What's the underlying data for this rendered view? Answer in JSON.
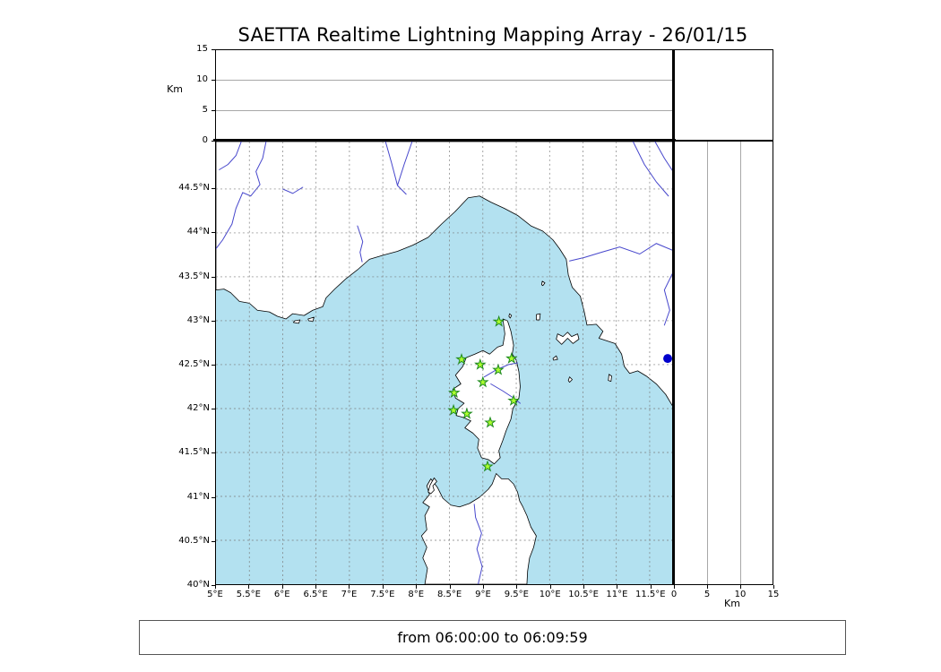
{
  "title": "SAETTA Realtime Lightning Mapping Array - 26/01/15",
  "footer": {
    "time_range": "from 06:00:00 to 06:09:59"
  },
  "axes": {
    "km_label": "Km",
    "km_ticks": [
      {
        "v": 0,
        "label": "0"
      },
      {
        "v": 5,
        "label": "5"
      },
      {
        "v": 10,
        "label": "10"
      },
      {
        "v": 15,
        "label": "15"
      }
    ],
    "lon_ticks": [
      {
        "v": 5,
        "label": "5°E"
      },
      {
        "v": 5.5,
        "label": "5.5°E"
      },
      {
        "v": 6,
        "label": "6°E"
      },
      {
        "v": 6.5,
        "label": "6.5°E"
      },
      {
        "v": 7,
        "label": "7°E"
      },
      {
        "v": 7.5,
        "label": "7.5°E"
      },
      {
        "v": 8,
        "label": "8°E"
      },
      {
        "v": 8.5,
        "label": "8.5°E"
      },
      {
        "v": 9,
        "label": "9°E"
      },
      {
        "v": 9.5,
        "label": "9.5°E"
      },
      {
        "v": 10,
        "label": "10°E"
      },
      {
        "v": 10.5,
        "label": "10.5°E"
      },
      {
        "v": 11,
        "label": "11°E"
      },
      {
        "v": 11.5,
        "label": "11.5°E"
      }
    ],
    "lat_ticks": [
      {
        "v": 40,
        "label": "40°N"
      },
      {
        "v": 40.5,
        "label": "40.5°N"
      },
      {
        "v": 41,
        "label": "41°N"
      },
      {
        "v": 41.5,
        "label": "41.5°N"
      },
      {
        "v": 42,
        "label": "42°N"
      },
      {
        "v": 42.5,
        "label": "42.5°N"
      },
      {
        "v": 43,
        "label": "43°N"
      },
      {
        "v": 43.5,
        "label": "43.5°N"
      },
      {
        "v": 44,
        "label": "44°N"
      },
      {
        "v": 44.5,
        "label": "44.5°N"
      }
    ]
  },
  "colors": {
    "sea": "#b3e1f0",
    "land": "#ffffff",
    "river": "#4646cc",
    "station": "#adff2f",
    "station_edge": "#1f8b1f",
    "marker": "#0000cc"
  },
  "chart_data": {
    "type": "scatter-map",
    "title": "SAETTA Realtime Lightning Mapping Array - 26/01/15",
    "map_extent": {
      "lon_min": 5,
      "lon_max": 11.85,
      "lat_min": 40,
      "lat_max": 45.04
    },
    "altitude_km_range": [
      0,
      15
    ],
    "altitude_gridlines_km": [
      5,
      10
    ],
    "stations": [
      {
        "lon": 9.24,
        "lat": 42.99
      },
      {
        "lon": 8.68,
        "lat": 42.56
      },
      {
        "lon": 8.96,
        "lat": 42.5
      },
      {
        "lon": 9.23,
        "lat": 42.44
      },
      {
        "lon": 9.43,
        "lat": 42.57
      },
      {
        "lon": 9.0,
        "lat": 42.3
      },
      {
        "lon": 8.57,
        "lat": 42.18
      },
      {
        "lon": 9.46,
        "lat": 42.09
      },
      {
        "lon": 8.56,
        "lat": 41.98
      },
      {
        "lon": 8.76,
        "lat": 41.94
      },
      {
        "lon": 9.11,
        "lat": 41.84
      },
      {
        "lon": 9.07,
        "lat": 41.34
      }
    ],
    "highlight_point": {
      "lon": 11.77,
      "lat": 42.57
    }
  }
}
